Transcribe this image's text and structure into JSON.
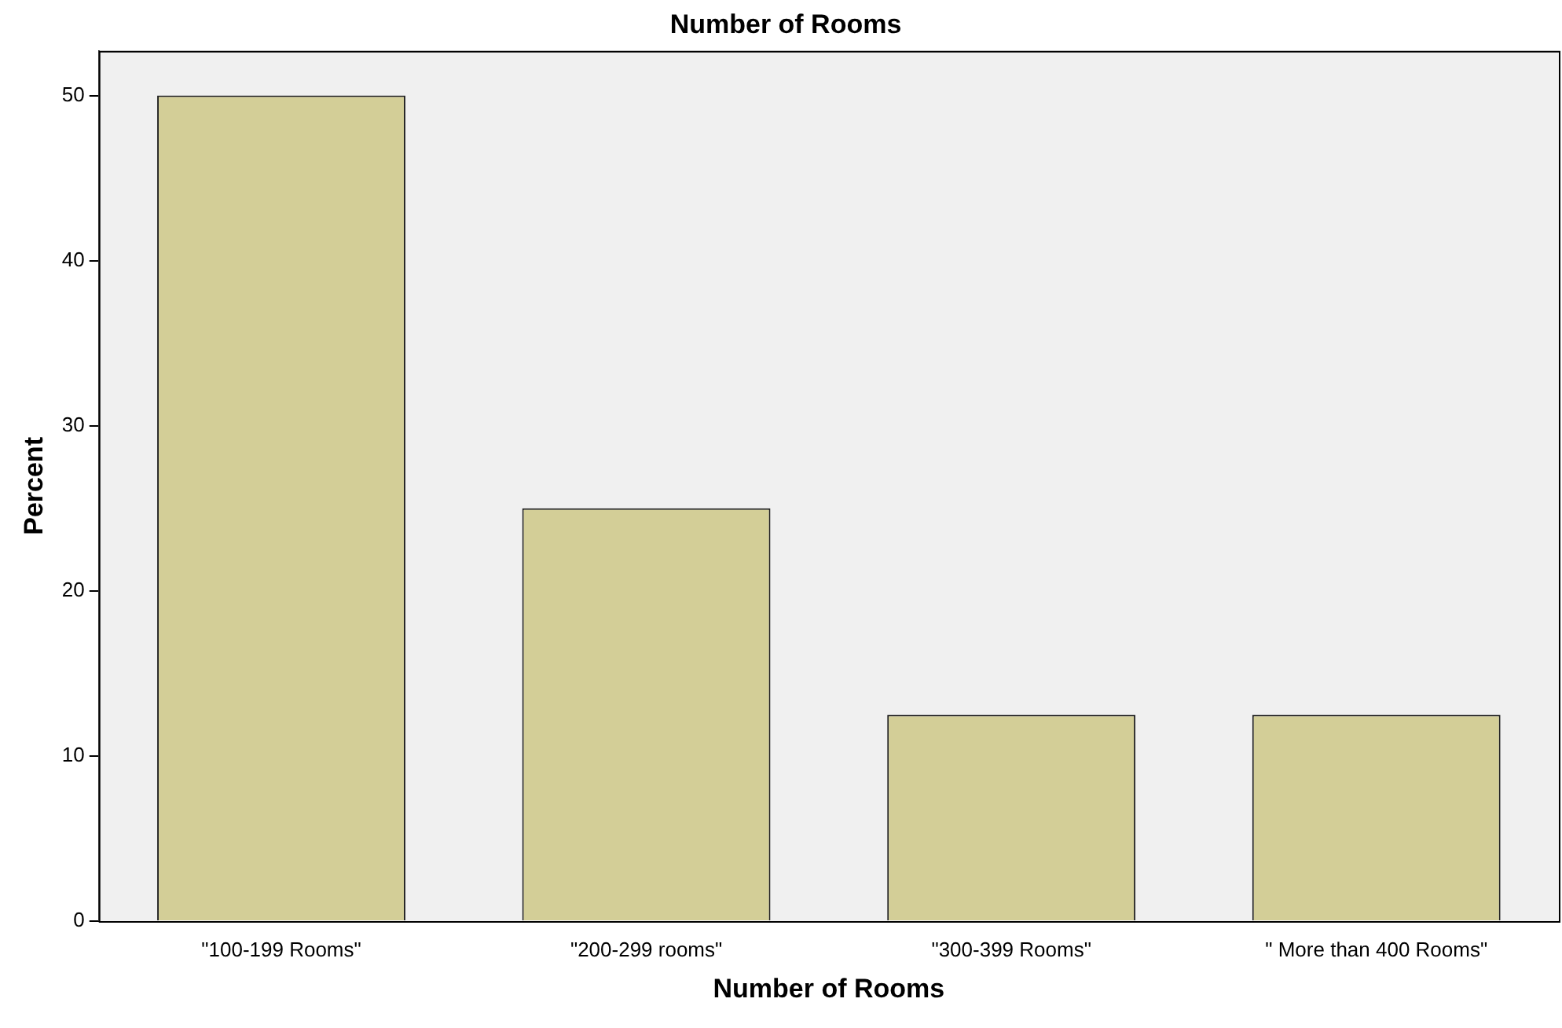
{
  "chart_data": {
    "type": "bar",
    "title": "Number of Rooms",
    "xlabel": "Number of Rooms",
    "ylabel": "Percent",
    "categories": [
      "\"100-199 Rooms\"",
      "\"200-299 rooms\"",
      "\"300-399 Rooms\"",
      "\" More than 400 Rooms\""
    ],
    "values": [
      50,
      25,
      12.5,
      12.5
    ],
    "color": "#d3ce97",
    "ylim": [
      0,
      52.7
    ],
    "yticks": [
      0,
      10,
      20,
      30,
      40,
      50
    ],
    "grid": false,
    "legend": false
  }
}
